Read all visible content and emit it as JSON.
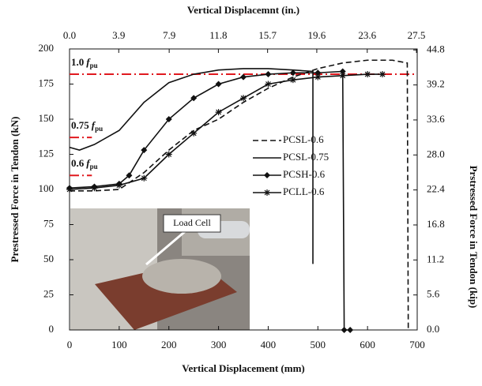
{
  "chart_data": {
    "type": "line",
    "xlabel": "Vertical Displacement (mm)",
    "x2label": "Vertical Displacemnt  (in.)",
    "ylabel": "Prestressed Force in Tendon (kN)",
    "y2label": "Prstressed Force in Tendon (kip)",
    "xlim": [
      0,
      700
    ],
    "xticks": [
      0,
      100,
      200,
      300,
      400,
      500,
      600,
      700
    ],
    "ylim": [
      0,
      200
    ],
    "yticks": [
      0,
      25,
      50,
      75,
      100,
      125,
      150,
      175,
      200
    ],
    "x2lim": [
      0,
      27.56
    ],
    "x2ticks": [
      {
        "value": 0,
        "label": "0.0"
      },
      3.9,
      7.9,
      11.8,
      15.7,
      19.6,
      23.6,
      27.5
    ],
    "y2lim": [
      0,
      44.96
    ],
    "y2ticks": [
      {
        "value": 0,
        "label": "0.0"
      },
      5.6,
      11.2,
      16.8,
      22.4,
      {
        "value": 28,
        "label": "28.0"
      },
      33.6,
      39.2,
      44.8
    ],
    "reference_lines": [
      {
        "coef": "1.0",
        "var": "f",
        "sub": "pu",
        "value": 182,
        "xrange": [
          0,
          700
        ],
        "color": "#e0191f"
      },
      {
        "coef": "0.75",
        "var": "f",
        "sub": "pu",
        "value": 137,
        "xrange": [
          0,
          45
        ],
        "color": "#e0191f"
      },
      {
        "coef": "0.6",
        "var": "f",
        "sub": "pu",
        "value": 110,
        "xrange": [
          0,
          45
        ],
        "color": "#e0191f"
      }
    ],
    "annotations": [
      {
        "text": "Load Cell"
      }
    ],
    "series": [
      {
        "name": "PCSL-0.6",
        "color": "#111111",
        "style": "dashed",
        "marker": "none",
        "x": [
          0,
          50,
          100,
          150,
          200,
          250,
          300,
          350,
          400,
          450,
          500,
          550,
          600,
          650,
          680,
          682
        ],
        "values": [
          99,
          99,
          100,
          112,
          128,
          142,
          150,
          162,
          172,
          180,
          186,
          190,
          192,
          192,
          190,
          0
        ]
      },
      {
        "name": "PCSL-0.75",
        "color": "#111111",
        "style": "solid",
        "marker": "none",
        "x": [
          0,
          20,
          50,
          100,
          150,
          200,
          250,
          300,
          350,
          400,
          450,
          490,
          490
        ],
        "values": [
          130,
          128,
          132,
          142,
          162,
          176,
          182,
          185,
          186,
          186,
          185,
          184,
          47
        ]
      },
      {
        "name": "PCSH-0.6",
        "color": "#111111",
        "style": "solid",
        "marker": "diamond",
        "x": [
          0,
          50,
          100,
          120,
          150,
          200,
          250,
          300,
          350,
          400,
          450,
          500,
          550,
          553,
          565
        ],
        "values": [
          101,
          102,
          104,
          110,
          128,
          150,
          165,
          175,
          180,
          182,
          183,
          183,
          184,
          0,
          0
        ]
      },
      {
        "name": "PCLL-0.6",
        "color": "#111111",
        "style": "solid",
        "marker": "star",
        "x": [
          0,
          50,
          100,
          150,
          200,
          250,
          300,
          350,
          400,
          450,
          500,
          550,
          600,
          630
        ],
        "values": [
          100,
          101,
          103,
          108,
          125,
          140,
          155,
          165,
          175,
          178,
          180,
          181,
          182,
          182
        ]
      }
    ]
  }
}
